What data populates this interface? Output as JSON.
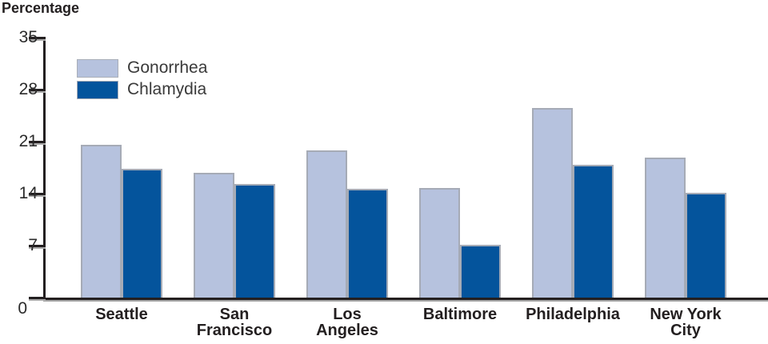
{
  "title": "Percentage",
  "chart_data": {
    "type": "bar",
    "title": "Percentage",
    "categories": [
      "Seattle",
      "San Francisco",
      "Los Angeles",
      "Baltimore",
      "Philadelphia",
      "New York City"
    ],
    "category_lines": [
      [
        "Seattle"
      ],
      [
        "San",
        "Francisco"
      ],
      [
        "Los",
        "Angeles"
      ],
      [
        "Baltimore"
      ],
      [
        "Philadelphia"
      ],
      [
        "New York",
        "City"
      ]
    ],
    "series": [
      {
        "name": "Gonorrhea",
        "color": "#b6c2de",
        "values": [
          20.6,
          16.8,
          19.8,
          14.8,
          25.5,
          18.9
        ]
      },
      {
        "name": "Chlamydia",
        "color": "#04549c",
        "values": [
          17.3,
          15.3,
          14.7,
          7.1,
          17.9,
          14.1
        ]
      }
    ],
    "ylabel": "Percentage",
    "ylim": [
      0,
      35
    ],
    "yticks": [
      35,
      28,
      21,
      14,
      7,
      0
    ],
    "grid": false,
    "legend_position": "top-left-inside"
  },
  "colors": {
    "axis": "#231f20",
    "axis_shadow": "#a5a5a5",
    "bar_border": "#a6abb6",
    "label_text": "#231f20",
    "legend_text": "#3a3a3a"
  }
}
